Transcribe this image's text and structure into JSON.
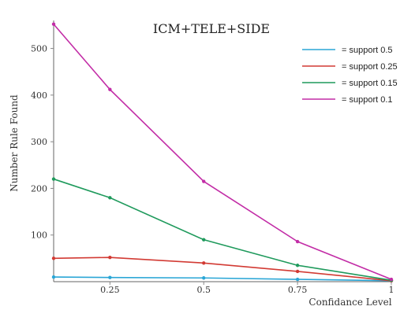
{
  "chart_data": {
    "type": "line",
    "title": "ICM+TELE+SIDE",
    "xlabel": "Confidance Level",
    "ylabel": "Number Rule Found",
    "x": [
      0.1,
      0.25,
      0.5,
      0.75,
      1
    ],
    "xlim": [
      0.1,
      1
    ],
    "ylim": [
      0,
      560
    ],
    "xticks": [
      0.25,
      0.5,
      0.75,
      1
    ],
    "xtick_labels": [
      "0.25",
      "0.5",
      "0.75",
      "1"
    ],
    "yticks": [
      100,
      200,
      300,
      400,
      500
    ],
    "ytick_labels": [
      "100",
      "200",
      "300",
      "400",
      "500"
    ],
    "grid": false,
    "legend_position": "top-right",
    "series": [
      {
        "name": "= support 0.5",
        "color": "#2aa6d6",
        "values": [
          10,
          9,
          8,
          5,
          2
        ]
      },
      {
        "name": "= support 0.25",
        "color": "#d23a33",
        "values": [
          50,
          52,
          40,
          22,
          2
        ]
      },
      {
        "name": "= support 0.15",
        "color": "#1f9a5c",
        "values": [
          220,
          180,
          90,
          35,
          3
        ]
      },
      {
        "name": "= support 0.1",
        "color": "#c22ca6",
        "values": [
          552,
          412,
          215,
          86,
          5
        ]
      }
    ]
  }
}
